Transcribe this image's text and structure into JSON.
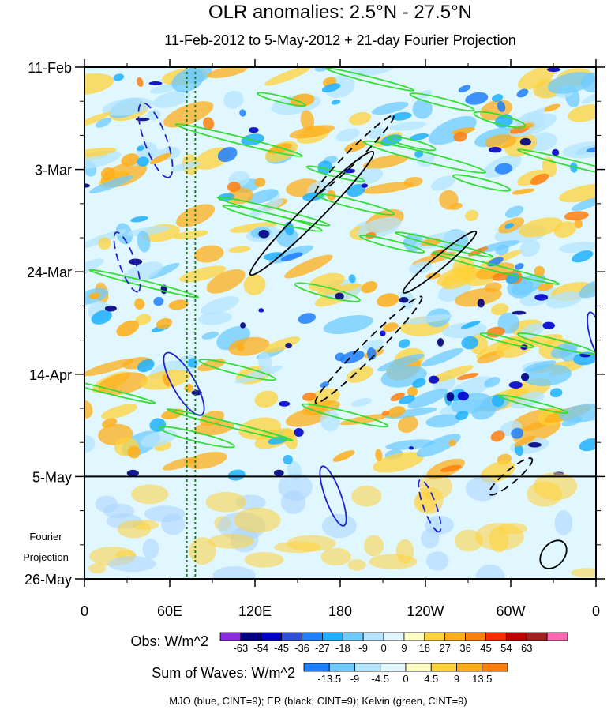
{
  "chart_data": {
    "type": "heatmap",
    "title": "OLR anomalies: 2.5°N - 27.5°N",
    "subtitle": "11-Feb-2012 to 5-May-2012 + 21-day Fourier Projection",
    "y_ticks": [
      "11-Feb",
      "3-Mar",
      "24-Mar",
      "14-Apr",
      "5-May",
      "26-May"
    ],
    "y_tick_days": [
      0,
      21,
      42,
      63,
      84,
      105
    ],
    "x_ticks": [
      "0",
      "60E",
      "120E",
      "180",
      "120W",
      "60W",
      "0"
    ],
    "x_tick_lons": [
      0,
      60,
      120,
      180,
      240,
      300,
      360
    ],
    "xlim": [
      0,
      360
    ],
    "ylim_days": [
      0,
      105
    ],
    "observation_end_day": 84,
    "projection_label_lines": [
      "Fourier",
      "Projection"
    ],
    "reference_longitudes": [
      72,
      78
    ],
    "obs_colorbar": {
      "label": "Obs: W/m^2",
      "levels": [
        "-63",
        "-54",
        "-45",
        "-36",
        "-27",
        "-18",
        "-9",
        "0",
        "9",
        "18",
        "27",
        "36",
        "45",
        "54",
        "63"
      ],
      "colors": [
        "#8b2be2",
        "#000080",
        "#0000cd",
        "#2f4fd8",
        "#1e7fff",
        "#1fb0ff",
        "#6ecbff",
        "#b4e4ff",
        "#e0f7ff",
        "#fffcc4",
        "#ffd23a",
        "#ffae1a",
        "#ff7f0e",
        "#ff2a00",
        "#c00000",
        "#a01f1f",
        "#ff69b4"
      ]
    },
    "waves_colorbar": {
      "label": "Sum of Waves: W/m^2",
      "levels": [
        "-13.5",
        "-9",
        "-4.5",
        "0",
        "4.5",
        "9",
        "13.5"
      ],
      "colors": [
        "#1e7fff",
        "#6ecbff",
        "#b4e4ff",
        "#e0f7ff",
        "#fffcc4",
        "#ffd23a",
        "#ffae1a",
        "#ff7f0e"
      ]
    },
    "footer": "MJO (blue, CINT=9); ER (black, CINT=9); Kelvin (green, CINT=9)",
    "series": [
      {
        "name": "MJO",
        "color": "#1f1fd0"
      },
      {
        "name": "ER",
        "color": "#000000"
      },
      {
        "name": "Kelvin",
        "color": "#33dd33"
      }
    ]
  }
}
